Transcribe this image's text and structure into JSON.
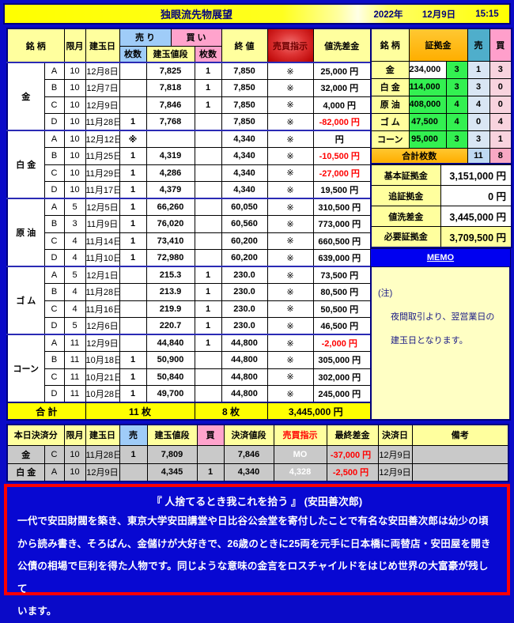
{
  "title_bar": {
    "title": "独眼流先物展望",
    "year": "2022年",
    "date": "12月9日",
    "time": "15:15"
  },
  "main_table": {
    "header": {
      "meigara": "銘 柄",
      "month": "限月",
      "open_date": "建玉日",
      "sell_group": "売 り",
      "buy_group": "買 い",
      "sell_qty": "枚数",
      "open_price": "建玉値段",
      "buy_qty": "枚数",
      "close": "終 値",
      "order": "売買指示",
      "pl": "値洗差金"
    },
    "groups": [
      {
        "name": "金",
        "rows": [
          {
            "letter": "A",
            "month": "10",
            "month_hl": false,
            "date": "12月8日",
            "date_hl": "",
            "sell": "",
            "price": "7,825",
            "buy": "1",
            "close": "7,850",
            "close_hl": true,
            "order": "※",
            "pl": "25,000 円",
            "pl_neg": false
          },
          {
            "letter": "B",
            "month": "10",
            "month_hl": false,
            "date": "12月7日",
            "date_hl": "",
            "sell": "",
            "price": "7,818",
            "buy": "1",
            "close": "7,850",
            "close_hl": false,
            "order": "※",
            "pl": "32,000 円",
            "pl_neg": false
          },
          {
            "letter": "C",
            "month": "10",
            "month_hl": false,
            "date": "12月9日",
            "date_hl": "peach",
            "sell": "",
            "price": "7,846",
            "buy": "1",
            "close": "7,850",
            "close_hl": false,
            "order": "※",
            "pl": "4,000 円",
            "pl_neg": false
          },
          {
            "letter": "D",
            "month": "10",
            "month_hl": false,
            "date": "11月28日",
            "date_hl": "",
            "sell": "1",
            "price": "7,768",
            "buy": "",
            "close": "7,850",
            "close_hl": false,
            "order": "※",
            "pl": "-82,000 円",
            "pl_neg": true
          }
        ]
      },
      {
        "name": "白 金",
        "rows": [
          {
            "letter": "A",
            "month": "10",
            "month_hl": false,
            "date": "12月12日",
            "date_hl": "yellow",
            "sell": "※",
            "price": "",
            "buy": "",
            "close": "4,340",
            "close_hl": true,
            "order": "※",
            "pl": "円",
            "pl_neg": false
          },
          {
            "letter": "B",
            "month": "10",
            "month_hl": false,
            "date": "11月25日",
            "date_hl": "",
            "sell": "1",
            "price": "4,319",
            "buy": "",
            "close": "4,340",
            "close_hl": false,
            "order": "※",
            "pl": "-10,500 円",
            "pl_neg": true
          },
          {
            "letter": "C",
            "month": "10",
            "month_hl": false,
            "date": "11月29日",
            "date_hl": "",
            "sell": "1",
            "price": "4,286",
            "buy": "",
            "close": "4,340",
            "close_hl": false,
            "order": "※",
            "pl": "-27,000 円",
            "pl_neg": true
          },
          {
            "letter": "D",
            "month": "10",
            "month_hl": false,
            "date": "11月17日",
            "date_hl": "",
            "sell": "1",
            "price": "4,379",
            "buy": "",
            "close": "4,340",
            "close_hl": false,
            "order": "※",
            "pl": "19,500 円",
            "pl_neg": false
          }
        ]
      },
      {
        "name": "原 油",
        "rows": [
          {
            "letter": "A",
            "month": "5",
            "month_hl": false,
            "date": "12月5日",
            "date_hl": "",
            "sell": "1",
            "price": "66,260",
            "buy": "",
            "close": "60,050",
            "close_hl": true,
            "order": "※",
            "pl": "310,500 円",
            "pl_neg": false
          },
          {
            "letter": "B",
            "month": "3",
            "month_hl": true,
            "date": "11月9日",
            "date_hl": "",
            "sell": "1",
            "price": "76,020",
            "buy": "",
            "close": "60,560",
            "close_hl": true,
            "order": "※",
            "pl": "773,000 円",
            "pl_neg": false
          },
          {
            "letter": "C",
            "month": "4",
            "month_hl": true,
            "date": "11月14日",
            "date_hl": "",
            "sell": "1",
            "price": "73,410",
            "buy": "",
            "close": "60,200",
            "close_hl": true,
            "order": "※",
            "pl": "660,500 円",
            "pl_neg": false
          },
          {
            "letter": "D",
            "month": "4",
            "month_hl": true,
            "date": "11月10日",
            "date_hl": "",
            "sell": "1",
            "price": "72,980",
            "buy": "",
            "close": "60,200",
            "close_hl": false,
            "order": "※",
            "pl": "639,000 円",
            "pl_neg": false
          }
        ]
      },
      {
        "name": "ゴ ム",
        "rows": [
          {
            "letter": "A",
            "month": "5",
            "month_hl": false,
            "date": "12月1日",
            "date_hl": "",
            "sell": "",
            "price": "215.3",
            "buy": "1",
            "close": "230.0",
            "close_hl": true,
            "order": "※",
            "pl": "73,500 円",
            "pl_neg": false
          },
          {
            "letter": "B",
            "month": "4",
            "month_hl": true,
            "date": "11月28日",
            "date_hl": "",
            "sell": "",
            "price": "213.9",
            "buy": "1",
            "close": "230.0",
            "close_hl": true,
            "order": "※",
            "pl": "80,500 円",
            "pl_neg": false
          },
          {
            "letter": "C",
            "month": "4",
            "month_hl": true,
            "date": "11月16日",
            "date_hl": "",
            "sell": "",
            "price": "219.9",
            "buy": "1",
            "close": "230.0",
            "close_hl": false,
            "order": "※",
            "pl": "50,500 円",
            "pl_neg": false
          },
          {
            "letter": "D",
            "month": "5",
            "month_hl": false,
            "date": "12月6日",
            "date_hl": "",
            "sell": "",
            "price": "220.7",
            "buy": "1",
            "close": "230.0",
            "close_hl": false,
            "order": "※",
            "pl": "46,500 円",
            "pl_neg": false
          }
        ]
      },
      {
        "name": "コーン",
        "rows": [
          {
            "letter": "A",
            "month": "11",
            "month_hl": false,
            "date": "12月9日",
            "date_hl": "peach",
            "sell": "",
            "price": "44,840",
            "buy": "1",
            "close": "44,800",
            "close_hl": true,
            "order": "※",
            "pl": "-2,000 円",
            "pl_neg": true
          },
          {
            "letter": "B",
            "month": "11",
            "month_hl": false,
            "date": "10月18日",
            "date_hl": "",
            "sell": "1",
            "price": "50,900",
            "buy": "",
            "close": "44,800",
            "close_hl": false,
            "order": "※",
            "pl": "305,000 円",
            "pl_neg": false
          },
          {
            "letter": "C",
            "month": "11",
            "month_hl": false,
            "date": "10月21日",
            "date_hl": "",
            "sell": "1",
            "price": "50,840",
            "buy": "",
            "close": "44,800",
            "close_hl": false,
            "order": "※",
            "pl": "302,000 円",
            "pl_neg": false
          },
          {
            "letter": "D",
            "month": "11",
            "month_hl": false,
            "date": "10月28日",
            "date_hl": "",
            "sell": "1",
            "price": "49,700",
            "buy": "",
            "close": "44,800",
            "close_hl": false,
            "order": "※",
            "pl": "245,000 円",
            "pl_neg": false
          }
        ]
      }
    ],
    "total": {
      "label": "合 計",
      "sell_total": "11 枚",
      "buy_total": "8 枚",
      "pl_total": "3,445,000 円"
    }
  },
  "margin_panel": {
    "header": {
      "meigara": "銘 柄",
      "margin": "証拠金",
      "sell": "売",
      "buy": "買"
    },
    "rows": [
      {
        "name": "金",
        "margin": "234,000",
        "margin_green": false,
        "count": "3",
        "sell": "1",
        "buy": "3"
      },
      {
        "name": "白 金",
        "margin": "114,000",
        "margin_green": true,
        "count": "3",
        "sell": "3",
        "buy": "0"
      },
      {
        "name": "原 油",
        "margin": "408,000",
        "margin_green": true,
        "count": "4",
        "sell": "4",
        "buy": "0"
      },
      {
        "name": "ゴ ム",
        "margin": "47,500",
        "margin_green": true,
        "count": "4",
        "sell": "0",
        "buy": "4"
      },
      {
        "name": "コーン",
        "margin": "95,000",
        "margin_green": true,
        "count": "3",
        "sell": "3",
        "buy": "1"
      }
    ],
    "totals": {
      "label": "合計枚数",
      "sell": "11",
      "buy": "8"
    },
    "summary": [
      {
        "label": "基本証拠金",
        "value": "3,151,000 円",
        "hl": false
      },
      {
        "label": "追証拠金",
        "value": "0 円",
        "hl": false
      },
      {
        "label": "値洗差金",
        "value": "3,445,000 円",
        "hl": false
      },
      {
        "label": "必要証拠金",
        "value": "3,709,500 円",
        "hl": true
      }
    ],
    "memo_label": "MEMO",
    "note": {
      "head": "(注)",
      "lines": [
        "夜間取引より、翌営業日の",
        "建玉日となります。"
      ]
    }
  },
  "settlement_table": {
    "header": {
      "title": "本日決済分",
      "month": "限月",
      "open_date": "建玉日",
      "sell": "売",
      "open_price": "建玉値段",
      "buy": "買",
      "settle_price": "決済値段",
      "order": "売買指示",
      "final_pl": "最終差金",
      "settle_date": "決済日",
      "remarks": "備考"
    },
    "rows": [
      {
        "name": "金",
        "letter": "C",
        "month": "10",
        "open_date": "11月28日",
        "sell": "1",
        "open_price": "7,809",
        "buy": "",
        "settle_price": "7,846",
        "order": "MO",
        "final_pl": "-37,000 円",
        "settle_date": "12月9日",
        "remarks": ""
      },
      {
        "name": "白 金",
        "letter": "A",
        "month": "10",
        "open_date": "12月9日",
        "sell": "",
        "open_price": "4,345",
        "buy": "1",
        "settle_price": "4,340",
        "order": "4,328",
        "final_pl": "-2,500 円",
        "settle_date": "12月9日",
        "remarks": ""
      }
    ]
  },
  "quote_box": {
    "title": "『 人捨てるとき我これを拾う 』 (安田善次郎)",
    "lines": [
      "一代で安田財閥を築き、東京大学安田講堂や日比谷公会堂を寄付したことで有名な安田善次郎は幼少の頃",
      "から読み書き、そろばん、金儲けが大好きで、26歳のときに25両を元手に日本橋に両替店・安田屋を開き",
      "公債の相場で巨利を得た人物です。同じような意味の金言をロスチャイルドをはじめ世界の大富豪が残して",
      "います。"
    ]
  }
}
